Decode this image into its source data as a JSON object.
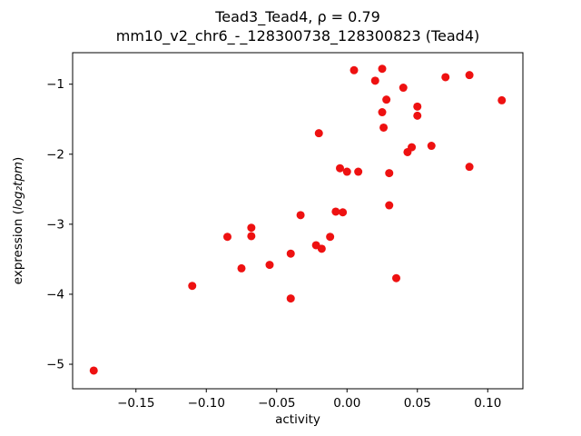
{
  "chart_data": {
    "type": "scatter",
    "title": "Tead3_Tead4, ρ = 0.79",
    "subtitle": "mm10_v2_chr6_-_128300738_128300823 (Tead4)",
    "xlabel": "activity",
    "ylabel_prefix": "expression (",
    "ylabel_math": "log₂tpm",
    "ylabel_suffix": ")",
    "xlim": [
      -0.195,
      0.125
    ],
    "ylim": [
      -5.35,
      -0.55
    ],
    "xticks": [
      -0.15,
      -0.1,
      -0.05,
      0.0,
      0.05,
      0.1
    ],
    "yticks": [
      -5,
      -4,
      -3,
      -2,
      -1
    ],
    "marker_color": "#ee1111",
    "grid": false,
    "legend": "none",
    "points": [
      [
        -0.18,
        -5.09
      ],
      [
        -0.11,
        -3.88
      ],
      [
        -0.085,
        -3.18
      ],
      [
        -0.075,
        -3.63
      ],
      [
        -0.068,
        -3.05
      ],
      [
        -0.068,
        -3.17
      ],
      [
        -0.055,
        -3.58
      ],
      [
        -0.04,
        -4.06
      ],
      [
        -0.04,
        -3.42
      ],
      [
        -0.033,
        -2.87
      ],
      [
        -0.022,
        -3.3
      ],
      [
        -0.018,
        -3.35
      ],
      [
        -0.02,
        -1.7
      ],
      [
        -0.012,
        -3.18
      ],
      [
        -0.008,
        -2.82
      ],
      [
        -0.003,
        -2.83
      ],
      [
        -0.005,
        -2.2
      ],
      [
        0.0,
        -2.25
      ],
      [
        0.005,
        -0.8
      ],
      [
        0.008,
        -2.25
      ],
      [
        0.02,
        -0.95
      ],
      [
        0.025,
        -0.78
      ],
      [
        0.025,
        -1.4
      ],
      [
        0.026,
        -1.62
      ],
      [
        0.028,
        -1.22
      ],
      [
        0.03,
        -2.27
      ],
      [
        0.03,
        -2.73
      ],
      [
        0.035,
        -3.77
      ],
      [
        0.04,
        -1.05
      ],
      [
        0.043,
        -1.97
      ],
      [
        0.046,
        -1.9
      ],
      [
        0.05,
        -1.32
      ],
      [
        0.05,
        -1.45
      ],
      [
        0.06,
        -1.88
      ],
      [
        0.07,
        -0.9
      ],
      [
        0.087,
        -0.87
      ],
      [
        0.087,
        -2.18
      ],
      [
        0.11,
        -1.23
      ]
    ]
  }
}
